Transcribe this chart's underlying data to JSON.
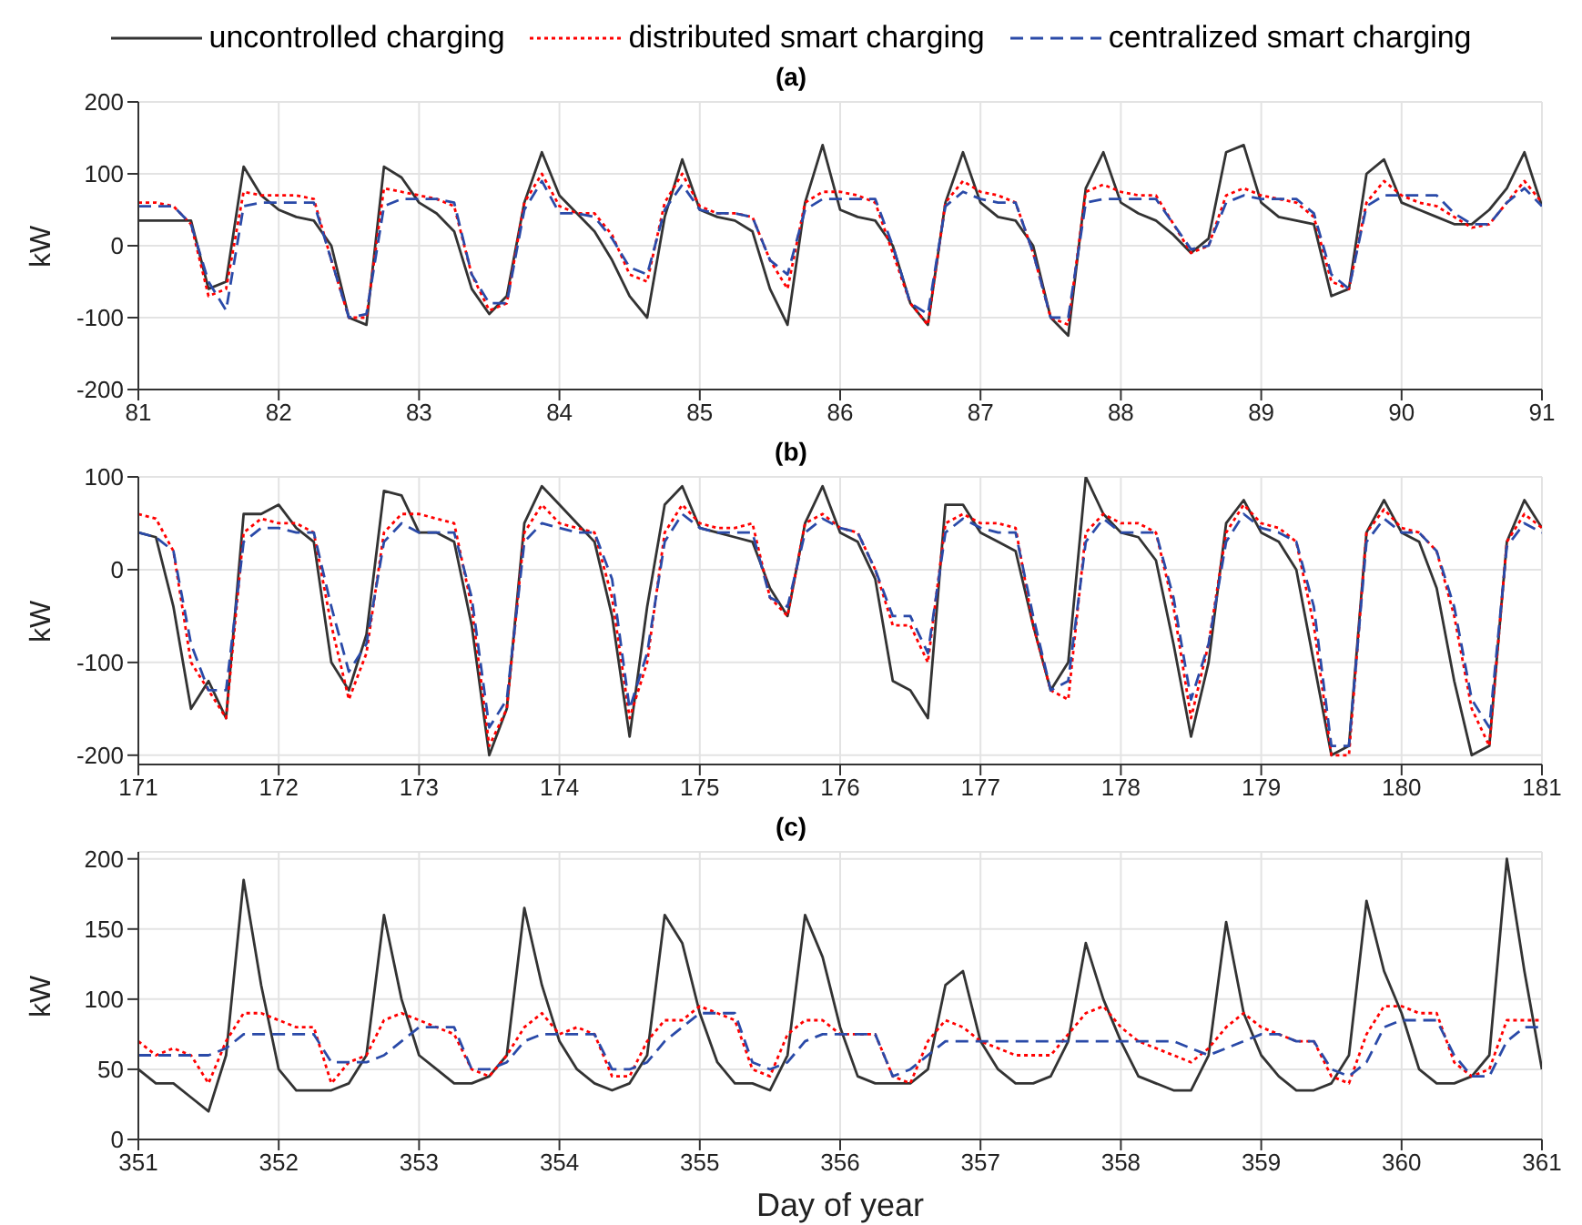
{
  "chart_data": [
    {
      "type": "line",
      "title": "(a)",
      "ylabel": "kW",
      "legend": "top",
      "grid": true,
      "marker": "none",
      "xlim": [
        81,
        91
      ],
      "xticks": [
        81,
        82,
        83,
        84,
        85,
        86,
        87,
        88,
        89,
        90,
        91
      ],
      "ylim": [
        -200,
        200
      ],
      "yticks": [
        -200,
        -100,
        0,
        100,
        200
      ],
      "x": [
        81,
        81.125,
        81.25,
        81.375,
        81.5,
        81.625,
        81.75,
        81.875,
        82,
        82.125,
        82.25,
        82.375,
        82.5,
        82.625,
        82.75,
        82.875,
        83,
        83.125,
        83.25,
        83.375,
        83.5,
        83.625,
        83.75,
        83.875,
        84,
        84.125,
        84.25,
        84.375,
        84.5,
        84.625,
        84.75,
        84.875,
        85,
        85.125,
        85.25,
        85.375,
        85.5,
        85.625,
        85.75,
        85.875,
        86,
        86.125,
        86.25,
        86.375,
        86.5,
        86.625,
        86.75,
        86.875,
        87,
        87.125,
        87.25,
        87.375,
        87.5,
        87.625,
        87.75,
        87.875,
        88,
        88.125,
        88.25,
        88.375,
        88.5,
        88.625,
        88.75,
        88.875,
        89,
        89.125,
        89.25,
        89.375,
        89.5,
        89.625,
        89.75,
        89.875,
        90,
        90.125,
        90.25,
        90.375,
        90.5,
        90.625,
        90.75,
        90.875,
        91
      ],
      "series": [
        {
          "name": "uncontrolled charging",
          "color": "#333333",
          "line_style": "solid",
          "values": [
            35,
            35,
            35,
            35,
            -60,
            -50,
            110,
            70,
            50,
            40,
            35,
            0,
            -100,
            -110,
            110,
            95,
            60,
            45,
            20,
            -60,
            -95,
            -70,
            60,
            130,
            70,
            45,
            20,
            -20,
            -70,
            -100,
            40,
            120,
            50,
            40,
            35,
            20,
            -60,
            -110,
            60,
            140,
            50,
            40,
            35,
            0,
            -80,
            -110,
            60,
            130,
            60,
            40,
            35,
            0,
            -100,
            -125,
            80,
            130,
            60,
            45,
            35,
            15,
            -10,
            10,
            130,
            140,
            60,
            40,
            35,
            30,
            -70,
            -60,
            100,
            120,
            60,
            50,
            40,
            30,
            30,
            50,
            80,
            130,
            55
          ]
        },
        {
          "name": "distributed smart charging",
          "color": "#ff0000",
          "line_style": "dotted",
          "values": [
            60,
            60,
            55,
            30,
            -70,
            -60,
            75,
            70,
            70,
            70,
            65,
            -20,
            -100,
            -100,
            80,
            75,
            70,
            65,
            55,
            -40,
            -90,
            -80,
            60,
            100,
            55,
            45,
            45,
            15,
            -40,
            -50,
            60,
            100,
            55,
            45,
            45,
            40,
            -20,
            -60,
            60,
            75,
            75,
            70,
            60,
            -10,
            -80,
            -110,
            60,
            90,
            75,
            70,
            60,
            -10,
            -100,
            -110,
            75,
            85,
            75,
            70,
            70,
            30,
            -10,
            0,
            70,
            80,
            70,
            65,
            60,
            40,
            -50,
            -60,
            60,
            90,
            70,
            60,
            55,
            40,
            25,
            30,
            60,
            90,
            60
          ]
        },
        {
          "name": "centralized smart charging",
          "color": "#2a4aa8",
          "line_style": "dashed",
          "values": [
            55,
            55,
            55,
            30,
            -50,
            -90,
            55,
            60,
            60,
            60,
            60,
            -20,
            -100,
            -95,
            55,
            65,
            65,
            65,
            60,
            -40,
            -80,
            -80,
            50,
            90,
            45,
            45,
            40,
            10,
            -30,
            -40,
            50,
            85,
            50,
            45,
            45,
            40,
            -20,
            -40,
            50,
            65,
            65,
            65,
            65,
            0,
            -80,
            -95,
            55,
            75,
            65,
            60,
            60,
            -10,
            -100,
            -100,
            60,
            65,
            65,
            65,
            65,
            30,
            -5,
            0,
            60,
            70,
            65,
            65,
            65,
            45,
            -40,
            -60,
            55,
            70,
            70,
            70,
            70,
            45,
            30,
            30,
            60,
            80,
            55
          ]
        }
      ]
    },
    {
      "type": "line",
      "title": "(b)",
      "ylabel": "kW",
      "grid": true,
      "marker": "none",
      "xlim": [
        171,
        181
      ],
      "xticks": [
        171,
        172,
        173,
        174,
        175,
        176,
        177,
        178,
        179,
        180,
        181
      ],
      "ylim": [
        -210,
        100
      ],
      "yticks": [
        -200,
        -100,
        0,
        100
      ],
      "x": [
        171,
        171.125,
        171.25,
        171.375,
        171.5,
        171.625,
        171.75,
        171.875,
        172,
        172.125,
        172.25,
        172.375,
        172.5,
        172.625,
        172.75,
        172.875,
        173,
        173.125,
        173.25,
        173.375,
        173.5,
        173.625,
        173.75,
        173.875,
        174,
        174.125,
        174.25,
        174.375,
        174.5,
        174.625,
        174.75,
        174.875,
        175,
        175.125,
        175.25,
        175.375,
        175.5,
        175.625,
        175.75,
        175.875,
        176,
        176.125,
        176.25,
        176.375,
        176.5,
        176.625,
        176.75,
        176.875,
        177,
        177.125,
        177.25,
        177.375,
        177.5,
        177.625,
        177.75,
        177.875,
        178,
        178.125,
        178.25,
        178.375,
        178.5,
        178.625,
        178.75,
        178.875,
        179,
        179.125,
        179.25,
        179.375,
        179.5,
        179.625,
        179.75,
        179.875,
        180,
        180.125,
        180.25,
        180.375,
        180.5,
        180.625,
        180.75,
        180.875,
        181
      ],
      "series": [
        {
          "color": "#333333",
          "line_style": "solid",
          "values": [
            40,
            35,
            -40,
            -150,
            -120,
            -160,
            60,
            60,
            70,
            45,
            30,
            -100,
            -130,
            -70,
            85,
            80,
            40,
            40,
            30,
            -60,
            -200,
            -150,
            50,
            90,
            70,
            50,
            30,
            -50,
            -180,
            -40,
            70,
            90,
            45,
            40,
            35,
            30,
            -20,
            -50,
            50,
            90,
            40,
            30,
            -10,
            -120,
            -130,
            -160,
            70,
            70,
            40,
            30,
            20,
            -60,
            -130,
            -100,
            100,
            60,
            40,
            35,
            10,
            -80,
            -180,
            -100,
            50,
            75,
            40,
            30,
            0,
            -100,
            -200,
            -190,
            40,
            75,
            40,
            30,
            -20,
            -120,
            -200,
            -190,
            30,
            75,
            45
          ]
        },
        {
          "color": "#ff0000",
          "line_style": "dotted",
          "values": [
            60,
            55,
            20,
            -100,
            -130,
            -160,
            40,
            55,
            50,
            50,
            40,
            -60,
            -140,
            -90,
            40,
            60,
            60,
            55,
            50,
            -40,
            -190,
            -150,
            40,
            70,
            50,
            45,
            40,
            -30,
            -160,
            -100,
            40,
            70,
            50,
            45,
            45,
            50,
            -30,
            -50,
            50,
            60,
            45,
            40,
            0,
            -60,
            -60,
            -100,
            50,
            60,
            50,
            50,
            45,
            -60,
            -130,
            -140,
            40,
            60,
            50,
            50,
            40,
            -40,
            -160,
            -80,
            40,
            70,
            50,
            45,
            30,
            -60,
            -200,
            -200,
            40,
            65,
            45,
            40,
            20,
            -50,
            -150,
            -190,
            30,
            60,
            45
          ]
        },
        {
          "color": "#2a4aa8",
          "line_style": "dashed",
          "values": [
            40,
            35,
            20,
            -80,
            -130,
            -130,
            30,
            45,
            45,
            40,
            40,
            -40,
            -110,
            -80,
            30,
            50,
            40,
            40,
            40,
            -30,
            -170,
            -140,
            30,
            50,
            45,
            40,
            40,
            -10,
            -150,
            -90,
            30,
            60,
            45,
            40,
            40,
            40,
            -30,
            -40,
            40,
            55,
            45,
            40,
            0,
            -50,
            -50,
            -90,
            40,
            55,
            45,
            40,
            40,
            -50,
            -130,
            -120,
            30,
            55,
            40,
            40,
            40,
            -30,
            -140,
            -80,
            30,
            60,
            45,
            40,
            30,
            -40,
            -190,
            -190,
            30,
            55,
            40,
            40,
            20,
            -40,
            -140,
            -170,
            25,
            50,
            40
          ]
        }
      ]
    },
    {
      "type": "line",
      "title": "(c)",
      "xlabel": "Day of year",
      "ylabel": "kW",
      "grid": true,
      "marker": "none",
      "xlim": [
        351,
        361
      ],
      "xticks": [
        351,
        352,
        353,
        354,
        355,
        356,
        357,
        358,
        359,
        360,
        361
      ],
      "ylim": [
        0,
        205
      ],
      "yticks": [
        0,
        50,
        100,
        150,
        200
      ],
      "x": [
        351,
        351.125,
        351.25,
        351.375,
        351.5,
        351.625,
        351.75,
        351.875,
        352,
        352.125,
        352.25,
        352.375,
        352.5,
        352.625,
        352.75,
        352.875,
        353,
        353.125,
        353.25,
        353.375,
        353.5,
        353.625,
        353.75,
        353.875,
        354,
        354.125,
        354.25,
        354.375,
        354.5,
        354.625,
        354.75,
        354.875,
        355,
        355.125,
        355.25,
        355.375,
        355.5,
        355.625,
        355.75,
        355.875,
        356,
        356.125,
        356.25,
        356.375,
        356.5,
        356.625,
        356.75,
        356.875,
        357,
        357.125,
        357.25,
        357.375,
        357.5,
        357.625,
        357.75,
        357.875,
        358,
        358.125,
        358.25,
        358.375,
        358.5,
        358.625,
        358.75,
        358.875,
        359,
        359.125,
        359.25,
        359.375,
        359.5,
        359.625,
        359.75,
        359.875,
        360,
        360.125,
        360.25,
        360.375,
        360.5,
        360.625,
        360.75,
        360.875,
        361
      ],
      "series": [
        {
          "color": "#333333",
          "line_style": "solid",
          "values": [
            50,
            40,
            40,
            30,
            20,
            60,
            185,
            110,
            50,
            35,
            35,
            35,
            40,
            60,
            160,
            100,
            60,
            50,
            40,
            40,
            45,
            60,
            165,
            110,
            70,
            50,
            40,
            35,
            40,
            60,
            160,
            140,
            90,
            55,
            40,
            40,
            35,
            60,
            160,
            130,
            80,
            45,
            40,
            40,
            40,
            50,
            110,
            120,
            70,
            50,
            40,
            40,
            45,
            70,
            140,
            100,
            70,
            45,
            40,
            35,
            35,
            60,
            155,
            90,
            60,
            45,
            35,
            35,
            40,
            60,
            170,
            120,
            90,
            50,
            40,
            40,
            45,
            60,
            200,
            120,
            50
          ]
        },
        {
          "color": "#ff0000",
          "line_style": "dotted",
          "values": [
            70,
            60,
            65,
            60,
            40,
            70,
            90,
            90,
            85,
            80,
            80,
            40,
            55,
            60,
            85,
            90,
            85,
            80,
            75,
            50,
            45,
            60,
            80,
            90,
            75,
            80,
            75,
            45,
            45,
            70,
            85,
            85,
            95,
            90,
            85,
            50,
            45,
            75,
            85,
            85,
            75,
            75,
            75,
            45,
            40,
            70,
            85,
            80,
            70,
            65,
            60,
            60,
            60,
            75,
            90,
            95,
            80,
            70,
            65,
            60,
            55,
            65,
            80,
            90,
            80,
            75,
            70,
            70,
            45,
            40,
            75,
            95,
            95,
            90,
            90,
            55,
            45,
            50,
            85,
            85,
            85
          ]
        },
        {
          "color": "#2a4aa8",
          "line_style": "dashed",
          "values": [
            60,
            60,
            60,
            60,
            60,
            65,
            75,
            75,
            75,
            75,
            75,
            55,
            55,
            55,
            60,
            70,
            80,
            80,
            80,
            50,
            50,
            55,
            70,
            75,
            75,
            75,
            75,
            50,
            50,
            55,
            70,
            80,
            90,
            90,
            90,
            55,
            50,
            55,
            70,
            75,
            75,
            75,
            75,
            45,
            50,
            60,
            70,
            70,
            70,
            70,
            70,
            70,
            70,
            70,
            70,
            70,
            70,
            70,
            70,
            70,
            65,
            60,
            65,
            70,
            75,
            75,
            70,
            70,
            50,
            45,
            55,
            80,
            85,
            85,
            85,
            60,
            45,
            45,
            70,
            80,
            80
          ]
        }
      ]
    }
  ]
}
